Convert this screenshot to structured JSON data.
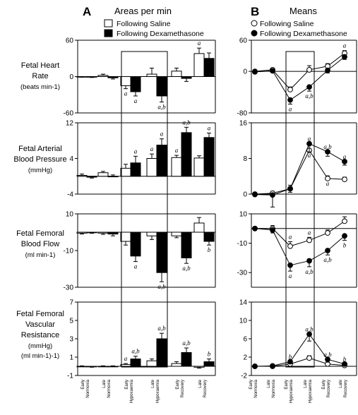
{
  "panels": {
    "A": {
      "letter": "A",
      "title": "Areas per min"
    },
    "B": {
      "letter": "B",
      "title": "Means"
    }
  },
  "legend_A": [
    {
      "label": "Following Saline",
      "fill": "#ffffff"
    },
    {
      "label": "Following Dexamethasone",
      "fill": "#000000"
    }
  ],
  "legend_B": [
    {
      "label": "Following Saline",
      "fill": "#ffffff"
    },
    {
      "label": "Following Dexamethasone",
      "fill": "#000000"
    }
  ],
  "categories": [
    [
      "Early",
      "Normoxia"
    ],
    [
      "Late",
      "Normoxia"
    ],
    [
      "Early",
      "Hypoxaemia"
    ],
    [
      "Late",
      "Hypoxaemia"
    ],
    [
      "Early",
      "Recovery"
    ],
    [
      "Late",
      "Recovery"
    ]
  ],
  "rows": [
    {
      "label_lines": [
        "Fetal Heart",
        "Rate"
      ],
      "unit_lines": [
        "(beats min-1)"
      ]
    },
    {
      "label_lines": [
        "Fetal Arterial",
        "Blood Pressure"
      ],
      "unit_lines": [
        "(mmHg)"
      ]
    },
    {
      "label_lines": [
        "Fetal Femoral",
        "Blood Flow"
      ],
      "unit_lines": [
        "(ml min-1)"
      ]
    },
    {
      "label_lines": [
        "Fetal Femoral",
        "Vascular",
        "Resistance"
      ],
      "unit_lines": [
        "(mmHg)",
        "(ml min-1)-1)"
      ]
    }
  ],
  "colors": {
    "saline": "#ffffff",
    "dexamethasone": "#000000",
    "outline": "#000000"
  },
  "chart_data": [
    {
      "type": "bar",
      "panel": "A",
      "row": 0,
      "ylim": [
        -60,
        60
      ],
      "yticks": [
        -60,
        0,
        60
      ],
      "series": [
        {
          "name": "Following Saline",
          "values": [
            -0.5,
            2,
            -15,
            4,
            9,
            38
          ],
          "errors": [
            0.5,
            2,
            5,
            10,
            5,
            9
          ]
        },
        {
          "name": "Following Dexamethasone",
          "values": [
            -1,
            -2,
            -25,
            -32,
            -3,
            30
          ],
          "errors": [
            0.5,
            2,
            7,
            10,
            5,
            9
          ]
        }
      ],
      "annotations": [
        {
          "text": "a",
          "category": 2,
          "series": 0,
          "pos": "below"
        },
        {
          "text": "a",
          "category": 2,
          "series": 1,
          "pos": "below"
        },
        {
          "text": "a,b",
          "category": 3,
          "series": 1,
          "pos": "below"
        },
        {
          "text": "a",
          "category": 5,
          "series": 0,
          "pos": "above"
        }
      ]
    },
    {
      "type": "bar",
      "panel": "A",
      "row": 1,
      "ylim": [
        -4,
        12
      ],
      "yticks": [
        -4,
        4,
        12
      ],
      "series": [
        {
          "name": "Following Saline",
          "values": [
            0.2,
            0.8,
            1.8,
            4,
            4.2,
            4.1
          ],
          "errors": [
            0.3,
            0.3,
            0.9,
            1,
            0.5,
            0.5
          ]
        },
        {
          "name": "Following Dexamethasone",
          "values": [
            -0.2,
            0,
            3,
            7,
            9.8,
            8.7
          ],
          "errors": [
            0.2,
            0.3,
            1.5,
            1.4,
            1.2,
            1
          ]
        }
      ],
      "annotations": [
        {
          "text": "a",
          "category": 2,
          "series": 1,
          "pos": "above"
        },
        {
          "text": "a",
          "category": 3,
          "series": 0,
          "pos": "above"
        },
        {
          "text": "a",
          "category": 3,
          "series": 1,
          "pos": "above"
        },
        {
          "text": "a,b",
          "category": 4,
          "series": 1,
          "pos": "above"
        },
        {
          "text": "a",
          "category": 4,
          "series": 0,
          "pos": "above"
        },
        {
          "text": "a",
          "category": 5,
          "series": 1,
          "pos": "above"
        }
      ]
    },
    {
      "type": "bar",
      "panel": "A",
      "row": 2,
      "ylim": [
        -30,
        10
      ],
      "yticks": [
        -30,
        -10,
        10
      ],
      "series": [
        {
          "name": "Following Saline",
          "values": [
            -0.5,
            -0.5,
            -5,
            -2,
            -2,
            5
          ],
          "errors": [
            0.5,
            0.7,
            2,
            2,
            1,
            3
          ]
        },
        {
          "name": "Following Dexamethasone",
          "values": [
            -0.3,
            -1,
            -13,
            -22,
            -14,
            -5
          ],
          "errors": [
            0.3,
            1,
            3,
            5,
            3,
            2
          ]
        }
      ],
      "annotations": [
        {
          "text": "a",
          "category": 2,
          "series": 1,
          "pos": "below"
        },
        {
          "text": "a,b",
          "category": 3,
          "series": 1,
          "pos": "below"
        },
        {
          "text": "a,b",
          "category": 4,
          "series": 1,
          "pos": "below"
        },
        {
          "text": "b",
          "category": 5,
          "series": 1,
          "pos": "below"
        }
      ]
    },
    {
      "type": "bar",
      "panel": "A",
      "row": 3,
      "ylim": [
        -1,
        7
      ],
      "yticks": [
        -1,
        1,
        3,
        5,
        7
      ],
      "series": [
        {
          "name": "Following Saline",
          "values": [
            0,
            0,
            0.2,
            0.6,
            0.3,
            -0.1
          ],
          "errors": [
            0.05,
            0.05,
            0.1,
            0.2,
            0.2,
            0.1
          ]
        },
        {
          "name": "Following Dexamethasone",
          "values": [
            -0.05,
            0,
            0.8,
            3,
            1.5,
            0.5
          ],
          "errors": [
            0.05,
            0.05,
            0.3,
            0.6,
            0.5,
            0.3
          ]
        }
      ],
      "annotations": [
        {
          "text": "a",
          "category": 2,
          "series": 0,
          "pos": "above"
        },
        {
          "text": "a,b",
          "category": 2,
          "series": 1,
          "pos": "above"
        },
        {
          "text": "a,b",
          "category": 3,
          "series": 1,
          "pos": "above"
        },
        {
          "text": "a,b",
          "category": 4,
          "series": 1,
          "pos": "above"
        },
        {
          "text": "b",
          "category": 5,
          "series": 1,
          "pos": "above"
        }
      ]
    },
    {
      "type": "line",
      "panel": "B",
      "row": 0,
      "ylim": [
        -80,
        60
      ],
      "yticks": [
        -80,
        0,
        60
      ],
      "series": [
        {
          "name": "Following Saline",
          "values": [
            0,
            3,
            -35,
            3,
            10,
            35
          ],
          "errors": [
            2,
            3,
            5,
            8,
            5,
            5
          ]
        },
        {
          "name": "Following Dexamethasone",
          "values": [
            -1,
            1,
            -55,
            -30,
            2,
            28
          ],
          "errors": [
            2,
            3,
            8,
            8,
            5,
            5
          ]
        }
      ],
      "annotations": [
        {
          "text": "a",
          "category": 5,
          "series": 0,
          "pos": "above"
        },
        {
          "text": "a,b",
          "category": 3,
          "series": 1,
          "pos": "below"
        },
        {
          "text": "a",
          "category": 2,
          "series": 1,
          "pos": "below"
        }
      ]
    },
    {
      "type": "line",
      "panel": "B",
      "row": 1,
      "ylim": [
        0,
        16
      ],
      "yticks": [
        0,
        8,
        16
      ],
      "series": [
        {
          "name": "Following Saline",
          "values": [
            0,
            0.2,
            1.2,
            9.8,
            3.5,
            3.3
          ],
          "errors": [
            0.3,
            0.4,
            0.8,
            1.5,
            0.6,
            0.5
          ]
        },
        {
          "name": "Following Dexamethasone",
          "values": [
            -0.1,
            -0.2,
            1.2,
            11.3,
            9.5,
            7.3
          ],
          "errors": [
            0.3,
            2.7,
            0.8,
            1.8,
            1,
            0.8
          ]
        }
      ],
      "annotations": [
        {
          "text": "a",
          "category": 3,
          "series": 1,
          "pos": "above"
        },
        {
          "text": "a,b",
          "category": 4,
          "series": 1,
          "pos": "above"
        },
        {
          "text": "a",
          "category": 5,
          "series": 1,
          "pos": "above"
        },
        {
          "text": "a",
          "category": 3,
          "series": 0,
          "pos": "below"
        },
        {
          "text": "a",
          "category": 4,
          "series": 0,
          "pos": "below"
        }
      ]
    },
    {
      "type": "line",
      "panel": "B",
      "row": 2,
      "ylim": [
        -40,
        10
      ],
      "yticks": [
        -30,
        -10,
        10
      ],
      "series": [
        {
          "name": "Following Saline",
          "values": [
            0,
            0,
            -12,
            -8,
            -3,
            5
          ],
          "errors": [
            1,
            2,
            3,
            2,
            2,
            3
          ]
        },
        {
          "name": "Following Dexamethasone",
          "values": [
            0,
            -1,
            -25,
            -22,
            -15,
            -5
          ],
          "errors": [
            1,
            2,
            4,
            4,
            3,
            3
          ]
        }
      ],
      "annotations": [
        {
          "text": "a",
          "category": 2,
          "series": 0,
          "pos": "above"
        },
        {
          "text": "a",
          "category": 3,
          "series": 0,
          "pos": "above"
        },
        {
          "text": "a",
          "category": 2,
          "series": 1,
          "pos": "below"
        },
        {
          "text": "a,b",
          "category": 3,
          "series": 1,
          "pos": "below"
        },
        {
          "text": "a,b",
          "category": 4,
          "series": 1,
          "pos": "below"
        },
        {
          "text": "b",
          "category": 5,
          "series": 1,
          "pos": "below"
        }
      ]
    },
    {
      "type": "line",
      "panel": "B",
      "row": 3,
      "ylim": [
        -2,
        14
      ],
      "yticks": [
        -2,
        2,
        6,
        10,
        14
      ],
      "series": [
        {
          "name": "Following Saline",
          "values": [
            0,
            0,
            0.5,
            1.8,
            0.5,
            0.2
          ],
          "errors": [
            0.2,
            0.2,
            0.3,
            0.5,
            0.3,
            0.2
          ]
        },
        {
          "name": "Following Dexamethasone",
          "values": [
            0,
            0.1,
            1,
            7,
            1.5,
            0.5
          ],
          "errors": [
            0.2,
            0.2,
            0.4,
            1.5,
            0.6,
            0.3
          ]
        }
      ],
      "annotations": [
        {
          "text": "b",
          "category": 2,
          "series": 1,
          "pos": "above"
        },
        {
          "text": "a,b",
          "category": 3,
          "series": 1,
          "pos": "above"
        },
        {
          "text": "a,b",
          "category": 4,
          "series": 1,
          "pos": "above"
        },
        {
          "text": "b",
          "category": 5,
          "series": 1,
          "pos": "above"
        }
      ]
    }
  ]
}
